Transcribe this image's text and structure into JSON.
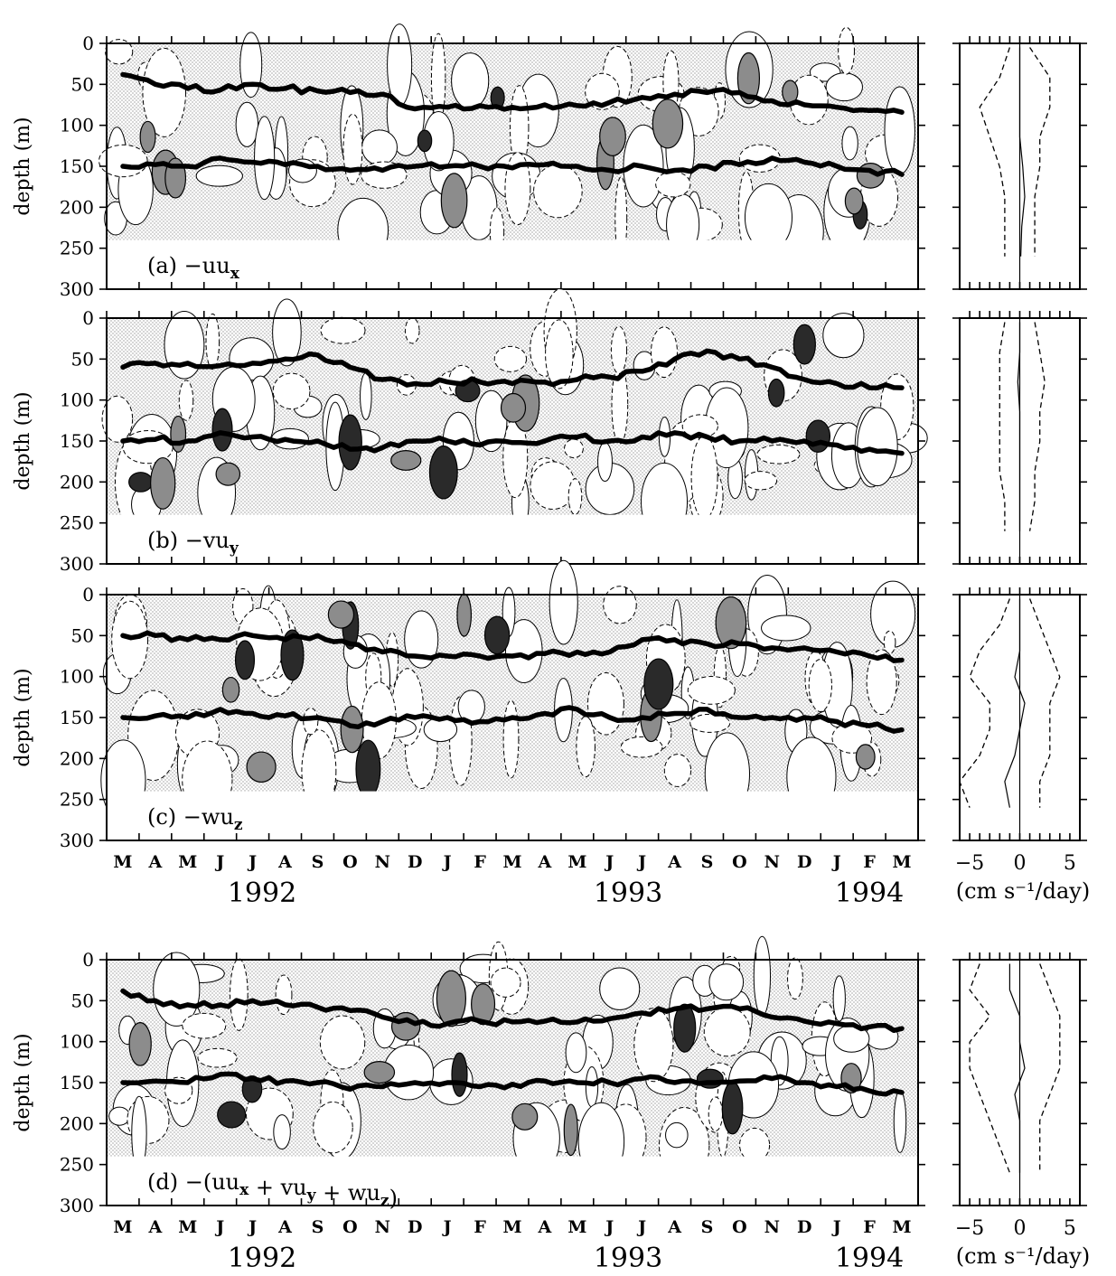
{
  "chart_data": [
    {
      "type": "heatmap",
      "panel_label": "(a)",
      "term": "−uu",
      "term_sub": "x",
      "ylabel": "depth (m)",
      "y_ticks": [
        0,
        50,
        100,
        150,
        200,
        250,
        300
      ],
      "ylim": [
        300,
        0
      ],
      "months": [
        "M",
        "A",
        "M",
        "J",
        "J",
        "A",
        "S",
        "O",
        "N",
        "D",
        "J",
        "F",
        "M",
        "A",
        "M",
        "J",
        "J",
        "A",
        "S",
        "O",
        "N",
        "D",
        "J",
        "F",
        "M"
      ],
      "upper_thermocline_depth": [
        38,
        50,
        55,
        57,
        50,
        55,
        58,
        60,
        62,
        80,
        78,
        76,
        78,
        75,
        76,
        72,
        66,
        62,
        60,
        60,
        70,
        75,
        78,
        82,
        84
      ],
      "lower_thermocline_depth": [
        150,
        148,
        150,
        140,
        145,
        148,
        150,
        155,
        155,
        150,
        150,
        150,
        152,
        148,
        150,
        155,
        150,
        155,
        150,
        148,
        140,
        145,
        150,
        155,
        160
      ],
      "profile": {
        "xlim": [
          -6,
          6
        ],
        "x_ticks": [
          -5,
          0,
          5
        ],
        "mean": [
          0,
          0,
          0,
          0,
          0.3,
          0.5,
          0.2,
          0.1
        ],
        "std_left": [
          -1,
          -2,
          -4,
          -3,
          -2,
          -1.5,
          -1.5,
          -1.5
        ],
        "std_right": [
          1,
          3,
          3,
          2,
          2,
          1.5,
          1.5,
          1.5
        ]
      }
    },
    {
      "type": "heatmap",
      "panel_label": "(b)",
      "term": "−vu",
      "term_sub": "y",
      "ylabel": "depth (m)",
      "y_ticks": [
        0,
        50,
        100,
        150,
        200,
        250,
        300
      ],
      "ylim": [
        300,
        0
      ],
      "months": [
        "M",
        "A",
        "M",
        "J",
        "J",
        "A",
        "S",
        "O",
        "N",
        "D",
        "J",
        "F",
        "M",
        "A",
        "M",
        "J",
        "J",
        "A",
        "S",
        "O",
        "N",
        "D",
        "J",
        "F",
        "M"
      ],
      "upper_thermocline_depth": [
        60,
        55,
        55,
        58,
        55,
        50,
        45,
        60,
        75,
        80,
        78,
        78,
        80,
        78,
        75,
        72,
        65,
        50,
        40,
        50,
        60,
        75,
        80,
        85,
        85
      ],
      "lower_thermocline_depth": [
        150,
        148,
        150,
        140,
        145,
        148,
        150,
        160,
        158,
        150,
        150,
        155,
        152,
        150,
        145,
        150,
        145,
        140,
        145,
        150,
        150,
        150,
        155,
        160,
        165
      ],
      "profile": {
        "xlim": [
          -6,
          6
        ],
        "x_ticks": [
          -5,
          0,
          5
        ],
        "mean": [
          0,
          0,
          -0.2,
          0,
          0,
          0,
          0,
          0
        ],
        "std_left": [
          -1.5,
          -2,
          -2,
          -2,
          -2,
          -2,
          -1.5,
          -1.5
        ],
        "std_right": [
          1.5,
          2,
          2.5,
          2,
          2,
          1.5,
          1.5,
          1
        ]
      }
    },
    {
      "type": "heatmap",
      "panel_label": "(c)",
      "term": "−wu",
      "term_sub": "z",
      "ylabel": "depth (m)",
      "y_ticks": [
        0,
        50,
        100,
        150,
        200,
        250,
        300
      ],
      "ylim": [
        300,
        0
      ],
      "months": [
        "M",
        "A",
        "M",
        "J",
        "J",
        "A",
        "S",
        "O",
        "N",
        "D",
        "J",
        "F",
        "M",
        "A",
        "M",
        "J",
        "J",
        "A",
        "S",
        "O",
        "N",
        "D",
        "J",
        "F",
        "M"
      ],
      "upper_thermocline_depth": [
        50,
        50,
        55,
        55,
        50,
        55,
        50,
        60,
        70,
        75,
        75,
        75,
        75,
        72,
        70,
        70,
        55,
        55,
        60,
        60,
        65,
        65,
        70,
        75,
        80
      ],
      "lower_thermocline_depth": [
        150,
        148,
        150,
        140,
        145,
        148,
        150,
        160,
        155,
        150,
        150,
        155,
        150,
        145,
        140,
        150,
        150,
        145,
        140,
        150,
        150,
        150,
        155,
        160,
        165
      ],
      "profile": {
        "xlim": [
          -6,
          6
        ],
        "x_ticks": [
          -5,
          0,
          5
        ],
        "mean": [
          0,
          0,
          0,
          -0.5,
          0.5,
          0,
          -0.5,
          -1.5,
          -1
        ],
        "std_left": [
          -1,
          -2,
          -4,
          -5,
          -3,
          -3,
          -4,
          -6,
          -5
        ],
        "std_right": [
          1,
          2,
          3,
          4,
          3,
          3,
          3,
          2,
          2
        ]
      },
      "x_axis_years": [
        "1992",
        "1993",
        "1994"
      ],
      "profile_xlabel": "(cm s⁻¹/day)"
    },
    {
      "type": "heatmap",
      "panel_label": "(d)",
      "term": "−(uu",
      "term_sub": "x",
      "term_mid1": " + vu",
      "term_sub2": "y",
      "term_mid2": " + wu",
      "term_sub3": "z",
      "term_end": ")",
      "ylabel": "depth (m)",
      "y_ticks": [
        0,
        50,
        100,
        150,
        200,
        250,
        300
      ],
      "ylim": [
        300,
        0
      ],
      "months": [
        "M",
        "A",
        "M",
        "J",
        "J",
        "A",
        "S",
        "O",
        "N",
        "D",
        "J",
        "F",
        "M",
        "A",
        "M",
        "J",
        "J",
        "A",
        "S",
        "O",
        "N",
        "D",
        "J",
        "F",
        "M"
      ],
      "upper_thermocline_depth": [
        38,
        50,
        55,
        55,
        50,
        55,
        58,
        62,
        70,
        78,
        78,
        75,
        76,
        75,
        76,
        72,
        65,
        60,
        60,
        60,
        70,
        75,
        78,
        82,
        84
      ],
      "lower_thermocline_depth": [
        150,
        148,
        150,
        140,
        145,
        148,
        150,
        158,
        155,
        150,
        150,
        155,
        152,
        148,
        150,
        150,
        145,
        150,
        150,
        148,
        145,
        150,
        155,
        160,
        162
      ],
      "profile": {
        "xlim": [
          -6,
          6
        ],
        "x_ticks": [
          -5,
          0,
          5
        ],
        "mean": [
          -1,
          -1,
          0,
          0,
          0.5,
          -0.5,
          0,
          0,
          0
        ],
        "std_left": [
          -4,
          -5,
          -3,
          -5,
          -5,
          -4,
          -3,
          -2,
          -1
        ],
        "std_right": [
          2,
          3,
          4,
          4,
          4,
          3,
          2,
          2,
          2
        ]
      },
      "x_axis_years": [
        "1992",
        "1993",
        "1994"
      ],
      "profile_xlabel": "(cm s⁻¹/day)"
    }
  ],
  "labels": {
    "ylabel": "depth (m)",
    "year1": "1992",
    "year2": "1993",
    "year3": "1994",
    "profile_xlabel": "(cm s⁻¹/day)"
  },
  "colors": {
    "shade_light": "#e4e4e4",
    "shade_dark": "#8c8c8c",
    "shade_black": "#2a2a2a",
    "line": "#000000"
  }
}
